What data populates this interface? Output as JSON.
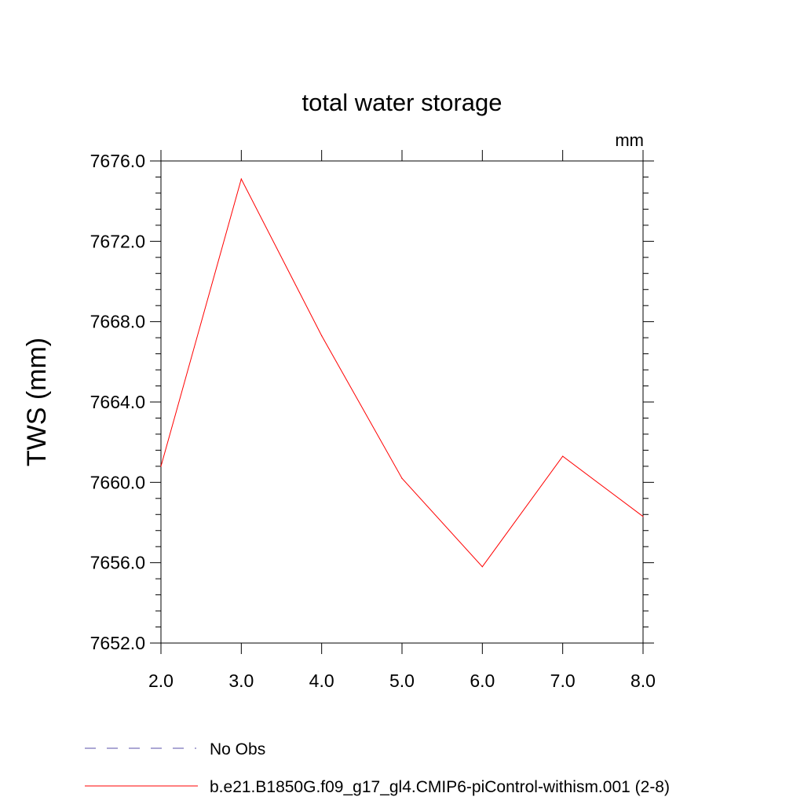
{
  "chart_data": {
    "type": "line",
    "title": "total water storage",
    "units_label": "mm",
    "ylabel": "TWS  (mm)",
    "xlabel": "",
    "xlim": [
      2.0,
      8.0
    ],
    "ylim": [
      7652.0,
      7676.0
    ],
    "x_ticks": [
      2.0,
      3.0,
      4.0,
      5.0,
      6.0,
      7.0,
      8.0
    ],
    "x_tick_labels": [
      "2.0",
      "3.0",
      "4.0",
      "5.0",
      "6.0",
      "7.0",
      "8.0"
    ],
    "y_ticks": [
      7652.0,
      7656.0,
      7660.0,
      7664.0,
      7668.0,
      7672.0,
      7676.0
    ],
    "y_tick_labels": [
      "7652.0",
      "7656.0",
      "7660.0",
      "7664.0",
      "7668.0",
      "7672.0",
      "7676.0"
    ],
    "grid": false,
    "legend_placement": "bottom",
    "series": [
      {
        "name": "b.e21.B1850G.f09_g17_gl4.CMIP6-piControl-withism.001 (2-8)",
        "color": "#ff0000",
        "style": "solid",
        "x": [
          2.0,
          3.0,
          4.0,
          5.0,
          6.0,
          7.0,
          8.0
        ],
        "values": [
          7660.8,
          7675.1,
          7667.3,
          7660.2,
          7655.8,
          7661.3,
          7658.3
        ]
      }
    ],
    "legend": [
      {
        "label": "No Obs",
        "color": "#5a4fa8",
        "style": "dashed"
      },
      {
        "label": "b.e21.B1850G.f09_g17_gl4.CMIP6-piControl-withism.001 (2-8)",
        "color": "#ff0000",
        "style": "solid"
      }
    ]
  }
}
